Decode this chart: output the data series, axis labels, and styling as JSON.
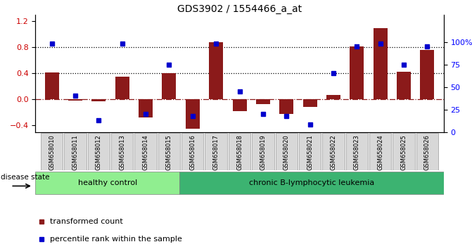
{
  "title": "GDS3902 / 1554466_a_at",
  "samples": [
    "GSM658010",
    "GSM658011",
    "GSM658012",
    "GSM658013",
    "GSM658014",
    "GSM658015",
    "GSM658016",
    "GSM658017",
    "GSM658018",
    "GSM658019",
    "GSM658020",
    "GSM658021",
    "GSM658022",
    "GSM658023",
    "GSM658024",
    "GSM658025",
    "GSM658026"
  ],
  "transformed_count": [
    0.42,
    -0.02,
    -0.03,
    0.35,
    -0.28,
    0.4,
    -0.45,
    0.88,
    -0.18,
    -0.07,
    -0.22,
    -0.12,
    0.07,
    0.82,
    1.1,
    0.43,
    0.76
  ],
  "percentile_rank": [
    98,
    40,
    13,
    98,
    20,
    75,
    18,
    98,
    45,
    20,
    18,
    8,
    65,
    95,
    98,
    75,
    95
  ],
  "bar_color": "#8B1A1A",
  "dot_color": "#0000CD",
  "left_ylim": [
    -0.5,
    1.3
  ],
  "right_ylim": [
    0,
    130
  ],
  "left_yticks": [
    -0.4,
    0.0,
    0.4,
    0.8,
    1.2
  ],
  "right_yticks": [
    0,
    25,
    50,
    75,
    100
  ],
  "right_yticklabels": [
    "0",
    "25",
    "50",
    "75",
    "100%"
  ],
  "hline_values": [
    0.4,
    0.8
  ],
  "hline_zero": 0.0,
  "healthy_control_count": 6,
  "group1_label": "healthy control",
  "group2_label": "chronic B-lymphocytic leukemia",
  "group1_color": "#90EE90",
  "group2_color": "#3CB371",
  "disease_state_label": "disease state",
  "legend_red_label": "transformed count",
  "legend_blue_label": "percentile rank within the sample",
  "cell_bg": "#D8D8D8",
  "cell_border": "#999999"
}
